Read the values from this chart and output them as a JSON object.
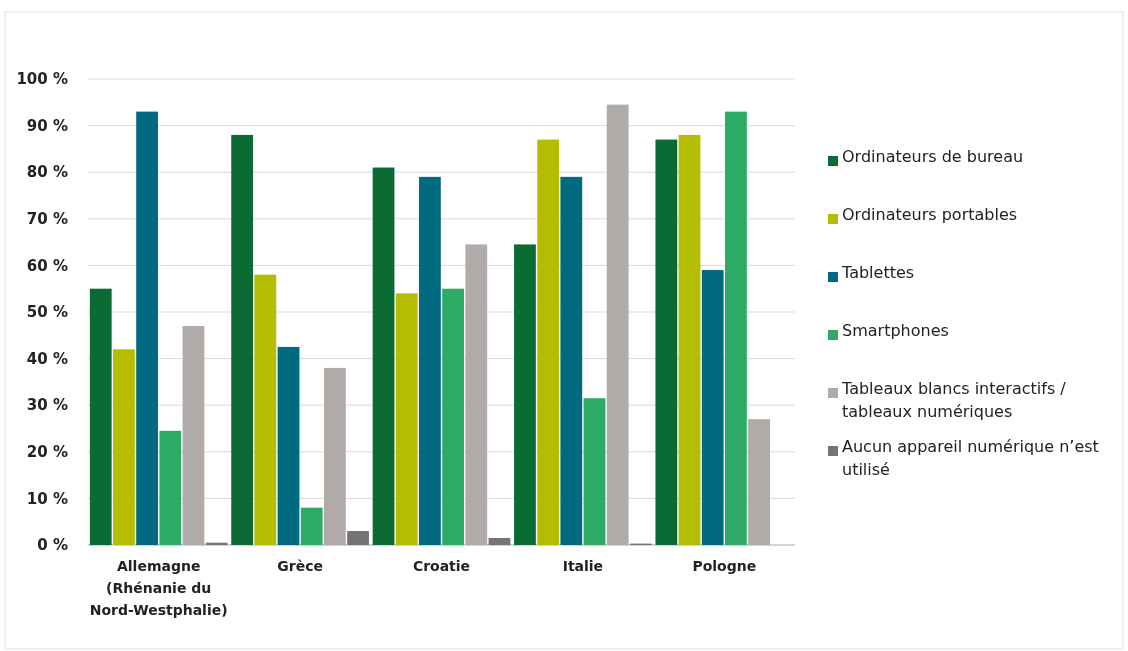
{
  "chart_data": {
    "type": "bar",
    "categories": [
      "Allemagne (Rhénanie du Nord-Westphalie)",
      "Grèce",
      "Croatie",
      "Italie",
      "Pologne"
    ],
    "series": [
      {
        "name": "Ordinateurs de bureau",
        "color": "#0a6b35",
        "values": [
          55,
          88,
          81,
          64.5,
          87
        ]
      },
      {
        "name": "Ordinateurs portables",
        "color": "#b5bd00",
        "values": [
          42,
          58,
          54,
          87,
          88
        ]
      },
      {
        "name": "Tablettes",
        "color": "#006a80",
        "values": [
          93,
          42.5,
          79,
          79,
          59
        ]
      },
      {
        "name": "Smartphones",
        "color": "#2eaa67",
        "values": [
          24.5,
          8,
          55,
          31.5,
          93
        ]
      },
      {
        "name": "Tableaux blancs interactifs / tableaux numériques",
        "color": "#b0aaa8",
        "values": [
          47,
          38,
          64.5,
          94.5,
          27
        ]
      },
      {
        "name": "Aucun appareil numérique n’est utilisé",
        "color": "#747474",
        "values": [
          0.5,
          3,
          1.5,
          0.3,
          null
        ]
      }
    ],
    "ylim": [
      0,
      100
    ],
    "yticks": [
      {
        "value": 0,
        "label": "0 %"
      },
      {
        "value": 10,
        "label": "10 %"
      },
      {
        "value": 20,
        "label": "20 %"
      },
      {
        "value": 30,
        "label": "30 %"
      },
      {
        "value": 40,
        "label": "40 %"
      },
      {
        "value": 50,
        "label": "50 %"
      },
      {
        "value": 60,
        "label": "60 %"
      },
      {
        "value": 70,
        "label": "70 %"
      },
      {
        "value": 80,
        "label": "80 %"
      },
      {
        "value": 90,
        "label": "90 %"
      },
      {
        "value": 100,
        "label": "100 %"
      }
    ],
    "grid": "y",
    "legend": "right"
  }
}
